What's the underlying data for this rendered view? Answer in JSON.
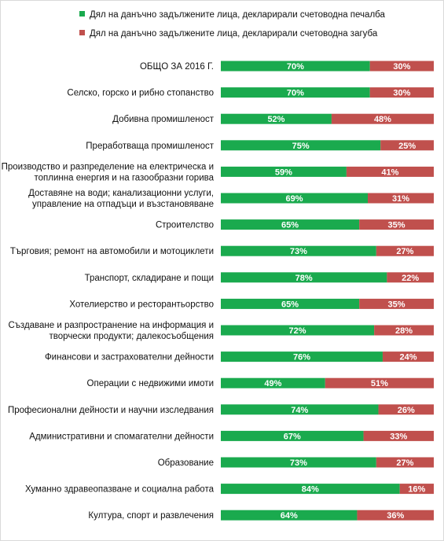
{
  "chart_data": {
    "type": "bar",
    "stacked": true,
    "orientation": "horizontal",
    "legend_position": "top",
    "colors": {
      "profit": "#1aaa4e",
      "loss": "#c0504d"
    },
    "series": [
      {
        "name": "Дял на данъчно задължените лица, декларирали счетоводна печалба",
        "color": "#1aaa4e",
        "values": [
          70,
          70,
          52,
          75,
          59,
          69,
          65,
          73,
          78,
          65,
          72,
          76,
          49,
          74,
          67,
          73,
          84,
          64
        ]
      },
      {
        "name": "Дял на данъчно задължените лица, декларирали счетоводна загуба",
        "color": "#c0504d",
        "values": [
          30,
          30,
          48,
          25,
          41,
          31,
          35,
          27,
          22,
          35,
          28,
          24,
          51,
          26,
          33,
          27,
          16,
          36
        ]
      }
    ],
    "categories": [
      [
        "ОБЩО ЗА 2016 Г."
      ],
      [
        "Селско, горско и рибно стопанство"
      ],
      [
        "Добивна промишленост"
      ],
      [
        "Преработваща промишленост"
      ],
      [
        "Производство и разпределение на електрическа и",
        "топлинна енергия и на газообразни горива"
      ],
      [
        "Доставяне на води; канализационни услуги,",
        "управление на отпадъци и възстановяване"
      ],
      [
        "Строителство"
      ],
      [
        "Търговия; ремонт на автомобили и мотоциклети"
      ],
      [
        "Транспорт, складиране и пощи"
      ],
      [
        "Хотелиерство и ресторантьорство"
      ],
      [
        "Създаване и разпространение на информация и",
        "творчески продукти; далекосъобщения"
      ],
      [
        "Финансови и застрахователни дейности"
      ],
      [
        "Операции с недвижими имоти"
      ],
      [
        "Професионални дейности и научни изследвания"
      ],
      [
        "Административни и  спомагателни дейности"
      ],
      [
        "Образование"
      ],
      [
        "Хуманно здравеопазване и социална работа"
      ],
      [
        "Култура, спорт и развлечения"
      ]
    ],
    "xlim": [
      0,
      100
    ],
    "value_suffix": "%"
  }
}
